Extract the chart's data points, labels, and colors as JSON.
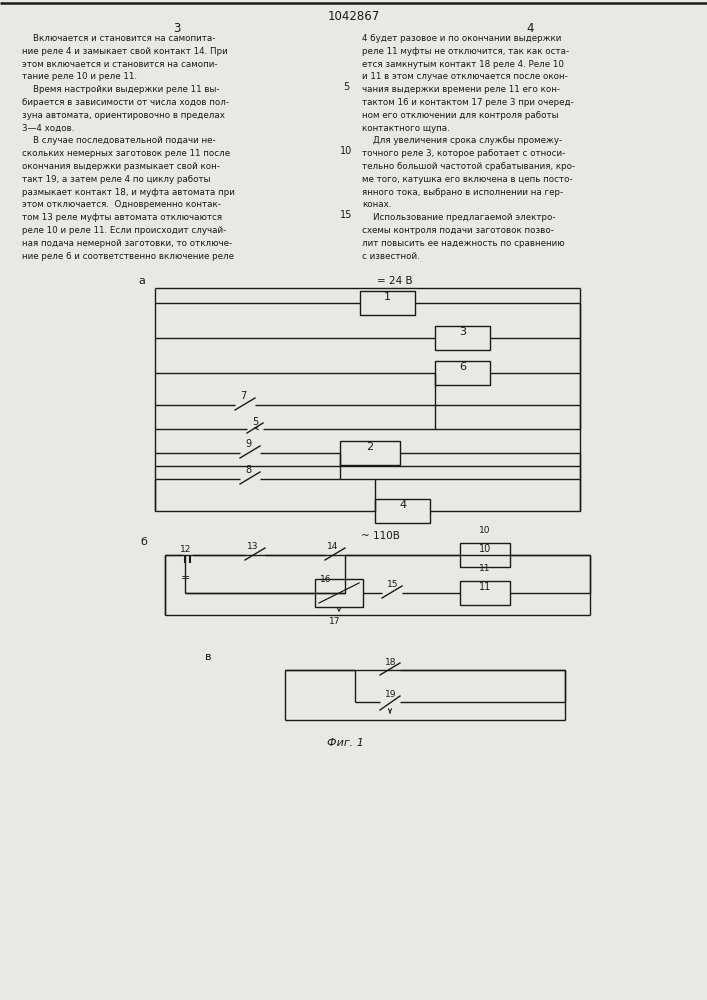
{
  "title": "1042867",
  "page_col_left": "3",
  "page_col_right": "4",
  "bg_color": "#e8e8e4",
  "text_color": "#1a1a1a",
  "text_left": [
    "    Включается и становится на самопита-",
    "ние реле 4 и замыкает свой контакт 14. При",
    "этом включается и становится на самопи-",
    "тание реле 10 и реле 11.",
    "    Время настройки выдержки реле 11 вы-",
    "бирается в зависимости от числа ходов пол-",
    "зуна автомата, ориентировочно в пределах",
    "3—4 ходов.",
    "    В случае последовательной подачи не-",
    "скольких немерных заготовок реле 11 после",
    "окончания выдержки размыкает свой кон-",
    "такт 19, а затем реле 4 по циклу работы",
    "размыкает контакт 18, и муфта автомата при",
    "этом отключается.  Одновременно контак-",
    "том 13 реле муфты автомата отключаются",
    "реле 10 и реле 11. Если происходит случай-",
    "ная подача немерной заготовки, то отключе-",
    "ние реле 6 и соответственно включение реле"
  ],
  "text_right": [
    "4 будет разовое и по окончании выдержки",
    "реле 11 муфты не отключится, так как оста-",
    "ется замкнутым контакт 18 реле 4. Реле 10",
    "и 11 в этом случае отключается после окон-",
    "чания выдержки времени реле 11 его кон-",
    "тактом 16 и контактом 17 реле 3 при очеред-",
    "ном его отключении для контроля работы",
    "контактного щупа.",
    "    Для увеличения срока службы промежу-",
    "точного реле 3, которое работает с относи-",
    "тельно большой частотой срабатывания, кро-",
    "ме того, катушка его включена в цепь посто-",
    "янного тока, выбрано в исполнении на гер-",
    "конах.",
    "    Использование предлагаемой электро-",
    "схемы контроля подачи заготовок позво-",
    "лит повысить ее надежность по сравнению",
    "с известной."
  ],
  "line_number_5": "5",
  "line_number_10": "10",
  "line_number_15": "15",
  "diagram_a_label": "а",
  "diagram_b_label": "б",
  "diagram_v_label": "в",
  "voltage_a": "= 24 В",
  "voltage_b": "~ 110В",
  "fig_label": "Фиг. 1"
}
